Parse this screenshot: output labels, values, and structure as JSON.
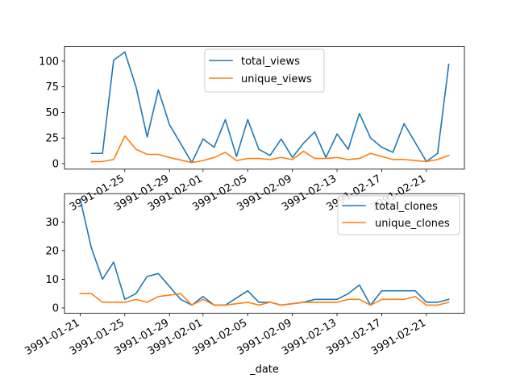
{
  "colors": {
    "series1": "#1f77b4",
    "series2": "#ff7f0e"
  },
  "chart_data": [
    {
      "type": "line",
      "x": [
        "3991-01-22",
        "3991-01-23",
        "3991-01-24",
        "3991-01-25",
        "3991-01-26",
        "3991-01-27",
        "3991-01-28",
        "3991-01-29",
        "3991-01-31",
        "3991-02-01",
        "3991-02-02",
        "3991-02-03",
        "3991-02-04",
        "3991-02-05",
        "3991-02-06",
        "3991-02-07",
        "3991-02-08",
        "3991-02-09",
        "3991-02-10",
        "3991-02-11",
        "3991-02-12",
        "3991-02-13",
        "3991-02-14",
        "3991-02-15",
        "3991-02-16",
        "3991-02-17",
        "3991-02-18",
        "3991-02-19",
        "3991-02-21",
        "3991-02-22",
        "3991-02-23"
      ],
      "series": [
        {
          "name": "total_views",
          "values": [
            10,
            10,
            101,
            109,
            75,
            26,
            72,
            38,
            1,
            24,
            16,
            43,
            7,
            43,
            14,
            8,
            24,
            6,
            20,
            31,
            6,
            29,
            14,
            49,
            25,
            16,
            11,
            39,
            2,
            10,
            97
          ]
        },
        {
          "name": "unique_views",
          "values": [
            2,
            2,
            4,
            27,
            14,
            9,
            9,
            6,
            1,
            3,
            6,
            11,
            3,
            5,
            5,
            4,
            6,
            4,
            12,
            5,
            5,
            6,
            4,
            5,
            10,
            7,
            4,
            4,
            2,
            4,
            8
          ]
        }
      ],
      "xticks": [
        "3991-01-25",
        "3991-01-29",
        "3991-02-01",
        "3991-02-05",
        "3991-02-09",
        "3991-02-13",
        "3991-02-17",
        "3991-02-21"
      ],
      "yticks": [
        "0",
        "25",
        "50",
        "75",
        "100"
      ],
      "ylim": [
        -5.4,
        114.4
      ],
      "xlabel": "",
      "ylabel": "",
      "legend": "upper center",
      "grid": false
    },
    {
      "type": "line",
      "x": [
        "3991-01-21",
        "3991-01-22",
        "3991-01-23",
        "3991-01-24",
        "3991-01-25",
        "3991-01-26",
        "3991-01-27",
        "3991-01-28",
        "3991-01-30",
        "3991-01-31",
        "3991-02-01",
        "3991-02-02",
        "3991-02-03",
        "3991-02-05",
        "3991-02-06",
        "3991-02-07",
        "3991-02-08",
        "3991-02-10",
        "3991-02-11",
        "3991-02-12",
        "3991-02-13",
        "3991-02-14",
        "3991-02-15",
        "3991-02-16",
        "3991-02-17",
        "3991-02-19",
        "3991-02-20",
        "3991-02-21",
        "3991-02-22",
        "3991-02-23"
      ],
      "series": [
        {
          "name": "total_clones",
          "values": [
            38,
            21,
            10,
            16,
            3,
            5,
            11,
            12,
            3,
            1,
            4,
            1,
            1,
            6,
            2,
            2,
            1,
            2,
            3,
            3,
            3,
            5,
            8,
            1,
            6,
            6,
            6,
            2,
            2,
            3
          ]
        },
        {
          "name": "unique_clones",
          "values": [
            5,
            5,
            2,
            2,
            2,
            3,
            2,
            4,
            5,
            1,
            3,
            1,
            1,
            2,
            1,
            2,
            1,
            2,
            2,
            2,
            2,
            3,
            3,
            1,
            3,
            3,
            4,
            1,
            1,
            2
          ]
        }
      ],
      "xticks": [
        "3991-01-21",
        "3991-01-25",
        "3991-01-29",
        "3991-02-01",
        "3991-02-05",
        "3991-02-09",
        "3991-02-13",
        "3991-02-17",
        "3991-02-21"
      ],
      "yticks": [
        "0",
        "10",
        "20",
        "30"
      ],
      "ylim": [
        -1.85,
        39.85
      ],
      "xlabel": "_date",
      "ylabel": "",
      "legend": "upper right",
      "grid": false
    }
  ]
}
